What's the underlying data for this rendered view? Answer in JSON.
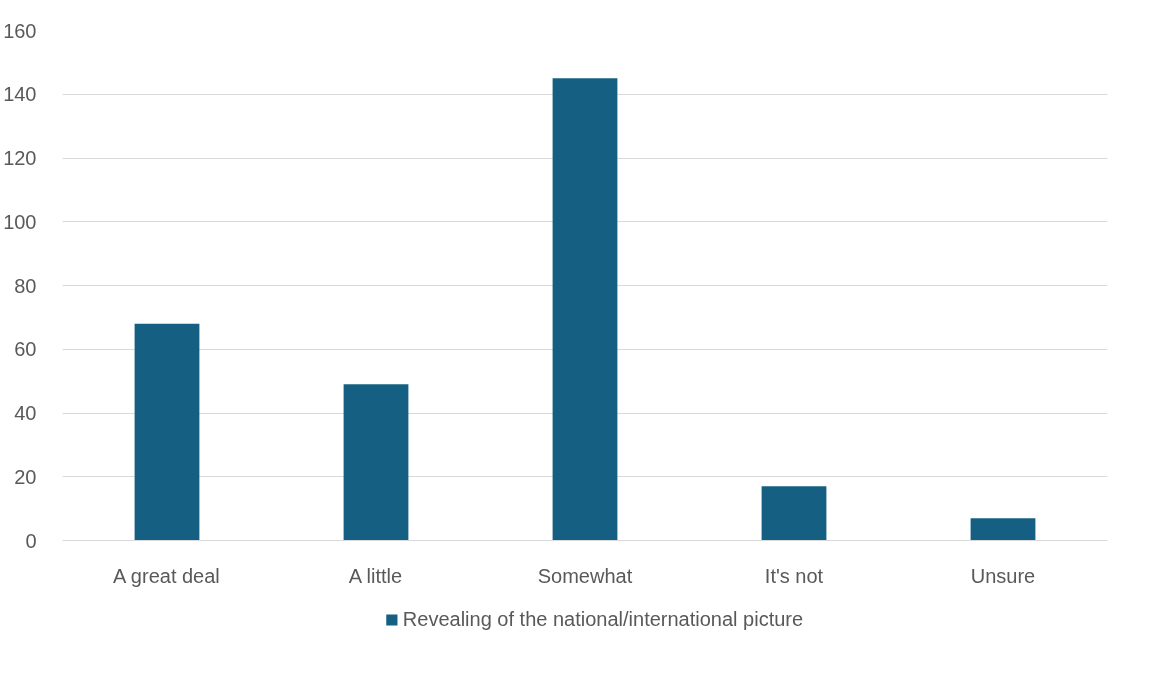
{
  "chart_data": {
    "type": "bar",
    "categories": [
      "A great deal",
      "A little",
      "Somewhat",
      "It's not",
      "Unsure"
    ],
    "series": [
      {
        "name": "Revealing of the national/international picture",
        "color": "#156082",
        "values": [
          68,
          49,
          145,
          17,
          7
        ]
      }
    ],
    "ylim": [
      0,
      160
    ],
    "yticks": [
      0,
      20,
      40,
      60,
      80,
      100,
      120,
      140,
      160
    ],
    "grid": "y",
    "legend": "bottom"
  }
}
